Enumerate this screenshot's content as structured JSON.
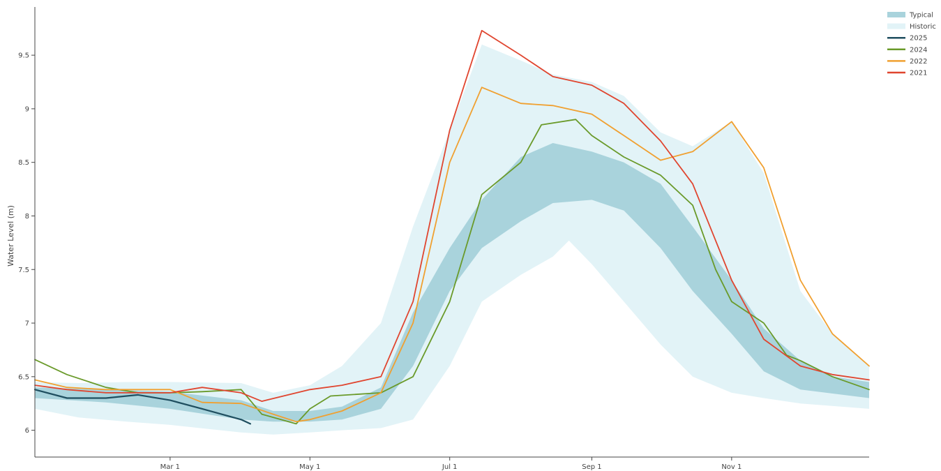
{
  "chart_data": {
    "type": "area",
    "title": "",
    "xlabel": "",
    "ylabel": "Water Level (m)",
    "x_axis": {
      "type": "date",
      "range": [
        "2025-01-01",
        "2025-12-31"
      ],
      "ticks": [
        {
          "date": "2025-03-01",
          "label": "Mar 1"
        },
        {
          "date": "2025-05-01",
          "label": "May 1"
        },
        {
          "date": "2025-07-01",
          "label": "Jul 1"
        },
        {
          "date": "2025-09-01",
          "label": "Sep 1"
        },
        {
          "date": "2025-11-01",
          "label": "Nov 1"
        }
      ]
    },
    "y_axis": {
      "range": [
        5.75,
        9.95
      ],
      "ticks": [
        6,
        6.5,
        7,
        7.5,
        8,
        8.5,
        9,
        9.5
      ]
    },
    "grid": false,
    "legend": {
      "position": "top-right",
      "entries": [
        {
          "label": "Typical",
          "color": "#a9d3dc",
          "kind": "band"
        },
        {
          "label": "Historic",
          "color": "#e2f3f7",
          "kind": "band"
        },
        {
          "label": "2025",
          "color": "#1f4e5f",
          "kind": "line"
        },
        {
          "label": "2024",
          "color": "#6a9a2a",
          "kind": "line"
        },
        {
          "label": "2022",
          "color": "#f0a030",
          "kind": "line"
        },
        {
          "label": "2021",
          "color": "#e0452f",
          "kind": "line"
        }
      ]
    },
    "bands": [
      {
        "name": "Historic",
        "color": "#e2f3f7",
        "upper": [
          [
            "2025-01-01",
            6.45
          ],
          [
            "2025-01-20",
            6.44
          ],
          [
            "2025-02-10",
            6.45
          ],
          [
            "2025-03-01",
            6.45
          ],
          [
            "2025-04-01",
            6.44
          ],
          [
            "2025-04-15",
            6.35
          ],
          [
            "2025-05-01",
            6.42
          ],
          [
            "2025-05-15",
            6.6
          ],
          [
            "2025-06-01",
            7.0
          ],
          [
            "2025-06-15",
            7.9
          ],
          [
            "2025-07-01",
            8.8
          ],
          [
            "2025-07-15",
            9.6
          ],
          [
            "2025-08-01",
            9.45
          ],
          [
            "2025-08-15",
            9.32
          ],
          [
            "2025-09-01",
            9.25
          ],
          [
            "2025-09-15",
            9.12
          ],
          [
            "2025-10-01",
            8.78
          ],
          [
            "2025-10-15",
            8.65
          ],
          [
            "2025-11-01",
            8.88
          ],
          [
            "2025-11-15",
            8.4
          ],
          [
            "2025-12-01",
            7.3
          ],
          [
            "2025-12-15",
            6.9
          ],
          [
            "2025-12-31",
            6.6
          ]
        ],
        "lower": [
          [
            "2025-01-01",
            6.2
          ],
          [
            "2025-01-20",
            6.12
          ],
          [
            "2025-02-10",
            6.08
          ],
          [
            "2025-03-01",
            6.05
          ],
          [
            "2025-04-01",
            5.98
          ],
          [
            "2025-04-15",
            5.96
          ],
          [
            "2025-05-01",
            5.98
          ],
          [
            "2025-05-15",
            6.0
          ],
          [
            "2025-06-01",
            6.02
          ],
          [
            "2025-06-15",
            6.1
          ],
          [
            "2025-07-01",
            6.6
          ],
          [
            "2025-07-15",
            7.2
          ],
          [
            "2025-08-01",
            7.45
          ],
          [
            "2025-08-15",
            7.62
          ],
          [
            "2025-08-22",
            7.77
          ],
          [
            "2025-09-01",
            7.55
          ],
          [
            "2025-09-15",
            7.2
          ],
          [
            "2025-10-01",
            6.8
          ],
          [
            "2025-10-15",
            6.5
          ],
          [
            "2025-11-01",
            6.35
          ],
          [
            "2025-11-15",
            6.3
          ],
          [
            "2025-12-01",
            6.25
          ],
          [
            "2025-12-31",
            6.2
          ]
        ]
      },
      {
        "name": "Typical",
        "color": "#a9d3dc",
        "upper": [
          [
            "2025-01-01",
            6.4
          ],
          [
            "2025-02-01",
            6.38
          ],
          [
            "2025-03-01",
            6.36
          ],
          [
            "2025-04-01",
            6.28
          ],
          [
            "2025-04-15",
            6.18
          ],
          [
            "2025-05-01",
            6.18
          ],
          [
            "2025-05-15",
            6.22
          ],
          [
            "2025-06-01",
            6.4
          ],
          [
            "2025-06-15",
            7.1
          ],
          [
            "2025-07-01",
            7.7
          ],
          [
            "2025-07-15",
            8.15
          ],
          [
            "2025-08-01",
            8.55
          ],
          [
            "2025-08-15",
            8.68
          ],
          [
            "2025-09-01",
            8.6
          ],
          [
            "2025-09-15",
            8.5
          ],
          [
            "2025-10-01",
            8.3
          ],
          [
            "2025-10-15",
            7.9
          ],
          [
            "2025-11-01",
            7.4
          ],
          [
            "2025-11-15",
            6.95
          ],
          [
            "2025-12-01",
            6.65
          ],
          [
            "2025-12-15",
            6.5
          ],
          [
            "2025-12-31",
            6.45
          ]
        ],
        "lower": [
          [
            "2025-01-01",
            6.3
          ],
          [
            "2025-02-01",
            6.26
          ],
          [
            "2025-03-01",
            6.2
          ],
          [
            "2025-04-01",
            6.1
          ],
          [
            "2025-04-15",
            6.08
          ],
          [
            "2025-05-01",
            6.08
          ],
          [
            "2025-05-15",
            6.1
          ],
          [
            "2025-06-01",
            6.2
          ],
          [
            "2025-06-15",
            6.6
          ],
          [
            "2025-07-01",
            7.3
          ],
          [
            "2025-07-15",
            7.7
          ],
          [
            "2025-08-01",
            7.95
          ],
          [
            "2025-08-15",
            8.12
          ],
          [
            "2025-09-01",
            8.15
          ],
          [
            "2025-09-15",
            8.05
          ],
          [
            "2025-10-01",
            7.7
          ],
          [
            "2025-10-15",
            7.3
          ],
          [
            "2025-11-01",
            6.9
          ],
          [
            "2025-11-15",
            6.55
          ],
          [
            "2025-12-01",
            6.38
          ],
          [
            "2025-12-31",
            6.3
          ]
        ]
      }
    ],
    "series": [
      {
        "name": "2025",
        "color": "#1f4e5f",
        "width": 2.2,
        "points": [
          [
            "2025-01-01",
            6.38
          ],
          [
            "2025-01-15",
            6.3
          ],
          [
            "2025-02-01",
            6.3
          ],
          [
            "2025-02-15",
            6.33
          ],
          [
            "2025-03-01",
            6.28
          ],
          [
            "2025-03-15",
            6.2
          ],
          [
            "2025-04-01",
            6.1
          ],
          [
            "2025-04-05",
            6.06
          ]
        ]
      },
      {
        "name": "2024",
        "color": "#6a9a2a",
        "width": 1.8,
        "points": [
          [
            "2025-01-01",
            6.66
          ],
          [
            "2025-01-15",
            6.52
          ],
          [
            "2025-02-01",
            6.4
          ],
          [
            "2025-02-15",
            6.35
          ],
          [
            "2025-03-01",
            6.35
          ],
          [
            "2025-03-15",
            6.36
          ],
          [
            "2025-04-01",
            6.38
          ],
          [
            "2025-04-10",
            6.15
          ],
          [
            "2025-04-25",
            6.06
          ],
          [
            "2025-05-01",
            6.2
          ],
          [
            "2025-05-10",
            6.32
          ],
          [
            "2025-06-01",
            6.35
          ],
          [
            "2025-06-15",
            6.5
          ],
          [
            "2025-07-01",
            7.2
          ],
          [
            "2025-07-15",
            8.2
          ],
          [
            "2025-08-01",
            8.5
          ],
          [
            "2025-08-10",
            8.85
          ],
          [
            "2025-08-25",
            8.9
          ],
          [
            "2025-09-01",
            8.75
          ],
          [
            "2025-09-15",
            8.55
          ],
          [
            "2025-10-01",
            8.38
          ],
          [
            "2025-10-15",
            8.1
          ],
          [
            "2025-10-25",
            7.5
          ],
          [
            "2025-11-01",
            7.2
          ],
          [
            "2025-11-15",
            7.0
          ],
          [
            "2025-11-25",
            6.7
          ],
          [
            "2025-12-01",
            6.65
          ],
          [
            "2025-12-15",
            6.5
          ],
          [
            "2025-12-31",
            6.38
          ]
        ]
      },
      {
        "name": "2022",
        "color": "#f0a030",
        "width": 1.8,
        "points": [
          [
            "2025-01-01",
            6.47
          ],
          [
            "2025-01-15",
            6.4
          ],
          [
            "2025-02-01",
            6.38
          ],
          [
            "2025-03-01",
            6.38
          ],
          [
            "2025-03-15",
            6.26
          ],
          [
            "2025-04-01",
            6.25
          ],
          [
            "2025-04-15",
            6.15
          ],
          [
            "2025-04-25",
            6.08
          ],
          [
            "2025-05-01",
            6.1
          ],
          [
            "2025-05-15",
            6.18
          ],
          [
            "2025-06-01",
            6.35
          ],
          [
            "2025-06-15",
            7.0
          ],
          [
            "2025-07-01",
            8.5
          ],
          [
            "2025-07-15",
            9.2
          ],
          [
            "2025-08-01",
            9.05
          ],
          [
            "2025-08-15",
            9.03
          ],
          [
            "2025-09-01",
            8.95
          ],
          [
            "2025-09-15",
            8.75
          ],
          [
            "2025-10-01",
            8.52
          ],
          [
            "2025-10-15",
            8.6
          ],
          [
            "2025-11-01",
            8.88
          ],
          [
            "2025-11-15",
            8.45
          ],
          [
            "2025-12-01",
            7.4
          ],
          [
            "2025-12-15",
            6.9
          ],
          [
            "2025-12-31",
            6.6
          ]
        ]
      },
      {
        "name": "2021",
        "color": "#e0452f",
        "width": 1.8,
        "points": [
          [
            "2025-01-01",
            6.42
          ],
          [
            "2025-01-15",
            6.38
          ],
          [
            "2025-02-01",
            6.35
          ],
          [
            "2025-03-01",
            6.35
          ],
          [
            "2025-03-15",
            6.4
          ],
          [
            "2025-04-01",
            6.35
          ],
          [
            "2025-04-10",
            6.27
          ],
          [
            "2025-05-01",
            6.38
          ],
          [
            "2025-05-15",
            6.42
          ],
          [
            "2025-06-01",
            6.5
          ],
          [
            "2025-06-15",
            7.2
          ],
          [
            "2025-07-01",
            8.8
          ],
          [
            "2025-07-15",
            9.73
          ],
          [
            "2025-08-01",
            9.5
          ],
          [
            "2025-08-15",
            9.3
          ],
          [
            "2025-09-01",
            9.22
          ],
          [
            "2025-09-15",
            9.05
          ],
          [
            "2025-10-01",
            8.7
          ],
          [
            "2025-10-15",
            8.3
          ],
          [
            "2025-11-01",
            7.4
          ],
          [
            "2025-11-15",
            6.85
          ],
          [
            "2025-12-01",
            6.6
          ],
          [
            "2025-12-15",
            6.52
          ],
          [
            "2025-12-31",
            6.47
          ]
        ]
      }
    ]
  }
}
